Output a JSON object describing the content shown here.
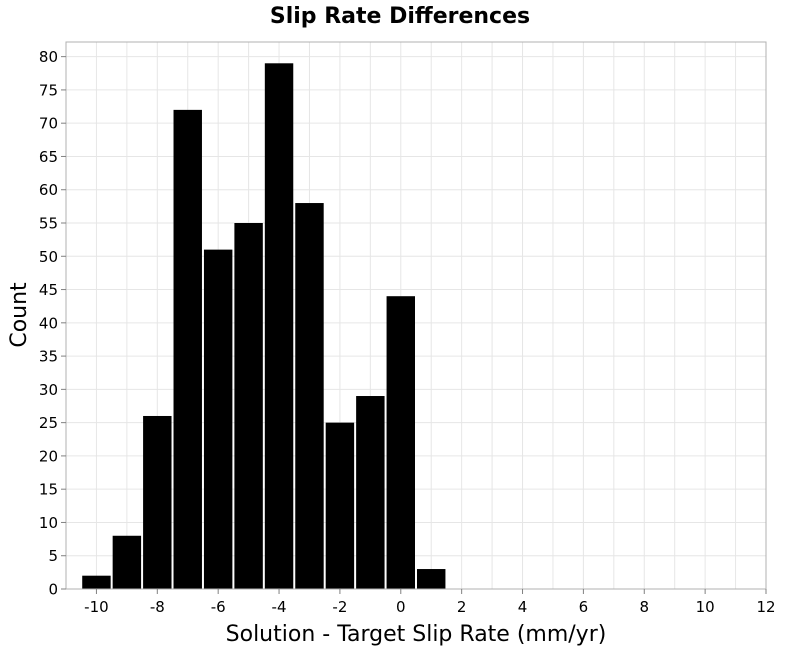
{
  "chart_data": {
    "type": "bar",
    "title": "Slip Rate Differences",
    "xlabel": "Solution - Target Slip Rate (mm/yr)",
    "ylabel": "Count",
    "bin_width": 1,
    "bins": [
      {
        "x": -10,
        "value": 2
      },
      {
        "x": -9,
        "value": 8
      },
      {
        "x": -8,
        "value": 26
      },
      {
        "x": -7,
        "value": 72
      },
      {
        "x": -6,
        "value": 51
      },
      {
        "x": -5,
        "value": 55
      },
      {
        "x": -4,
        "value": 79
      },
      {
        "x": -3,
        "value": 58
      },
      {
        "x": -2,
        "value": 25
      },
      {
        "x": -1,
        "value": 29
      },
      {
        "x": 0,
        "value": 44
      },
      {
        "x": 1,
        "value": 3
      }
    ],
    "xlim": [
      -11,
      12
    ],
    "ylim": [
      0,
      80
    ],
    "xticks": [
      -10,
      -8,
      -6,
      -4,
      -2,
      0,
      2,
      4,
      6,
      8,
      10,
      12
    ],
    "yticks": [
      0,
      5,
      10,
      15,
      20,
      25,
      30,
      35,
      40,
      45,
      50,
      55,
      60,
      65,
      70,
      75,
      80
    ],
    "grid": true,
    "bar_color": "#000000",
    "legend": "none"
  }
}
